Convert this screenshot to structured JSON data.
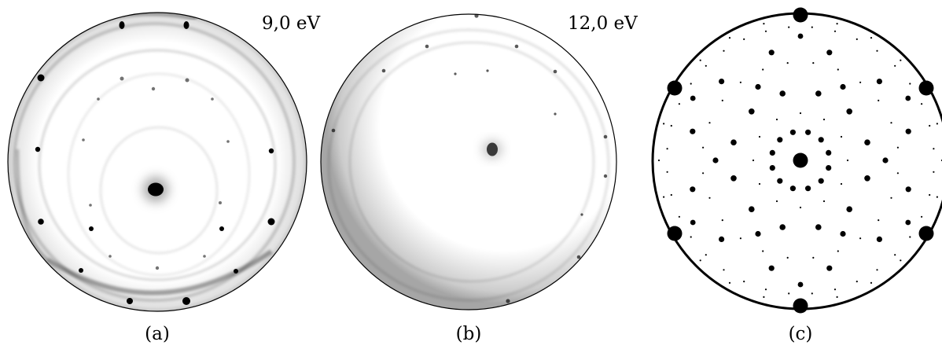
{
  "panels": [
    {
      "id": "a",
      "caption": "(a)",
      "energy_label": "9,0 eV"
    },
    {
      "id": "b",
      "caption": "(b)",
      "energy_label": "12,0 eV"
    },
    {
      "id": "c",
      "caption": "(c)",
      "energy_label": ""
    }
  ],
  "colors": {
    "spot": "#000000",
    "ring": "#000000",
    "background": "#ffffff",
    "haze": "#3a3a3a"
  }
}
